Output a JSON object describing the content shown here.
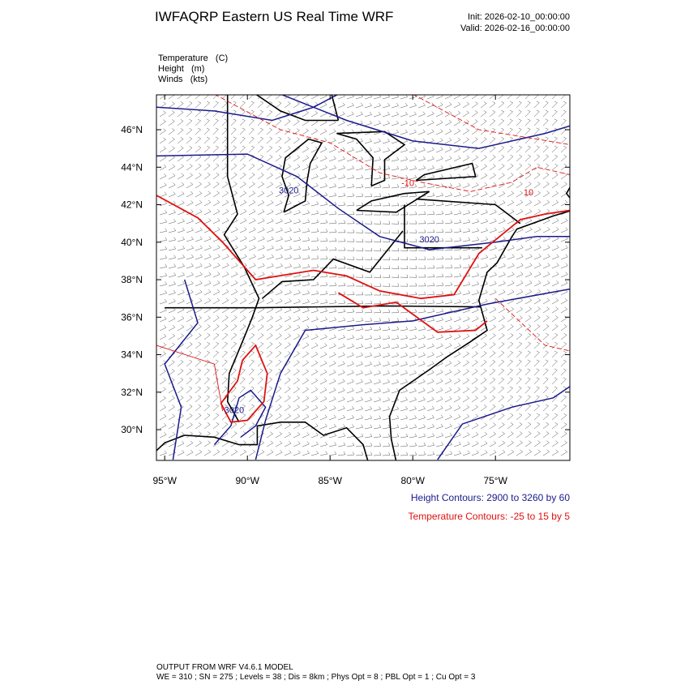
{
  "header": {
    "title": "IWFAQRP Eastern US Real Time WRF",
    "init": "Init: 2026-02-10_00:00:00",
    "valid": "Valid: 2026-02-16_00:00:00"
  },
  "fields": [
    "Temperature   (C)",
    "Height   (m)",
    "Winds   (kts)"
  ],
  "map": {
    "xlim": [
      -95.5,
      -70.5
    ],
    "ylim": [
      28.36,
      47.86
    ],
    "xticks": [
      {
        "value": -95,
        "label": "95°W"
      },
      {
        "value": -90,
        "label": "90°W"
      },
      {
        "value": -85,
        "label": "85°W"
      },
      {
        "value": -80,
        "label": "80°W"
      },
      {
        "value": -75,
        "label": "75°W"
      }
    ],
    "yticks": [
      {
        "value": 30,
        "label": "30°N"
      },
      {
        "value": 32,
        "label": "32°N"
      },
      {
        "value": 34,
        "label": "34°N"
      },
      {
        "value": 36,
        "label": "36°N"
      },
      {
        "value": 38,
        "label": "38°N"
      },
      {
        "value": 40,
        "label": "40°N"
      },
      {
        "value": 42,
        "label": "42°N"
      },
      {
        "value": 44,
        "label": "44°N"
      },
      {
        "value": 46,
        "label": "46°N"
      }
    ],
    "contour_labels": [
      "3020",
      "3020",
      "3020",
      "-10",
      "10"
    ]
  },
  "legend": [
    "Height Contours: 2900 to 3260 by 60",
    "Temperature Contours: -25 to 15 by 5"
  ],
  "footer": [
    "OUTPUT FROM WRF V4.6.1 MODEL",
    "WE = 310 ; SN = 275 ; Levels = 38 ; Dis = 8km ; Phys Opt = 8 ; PBL Opt = 1 ; Cu Opt = 3"
  ]
}
